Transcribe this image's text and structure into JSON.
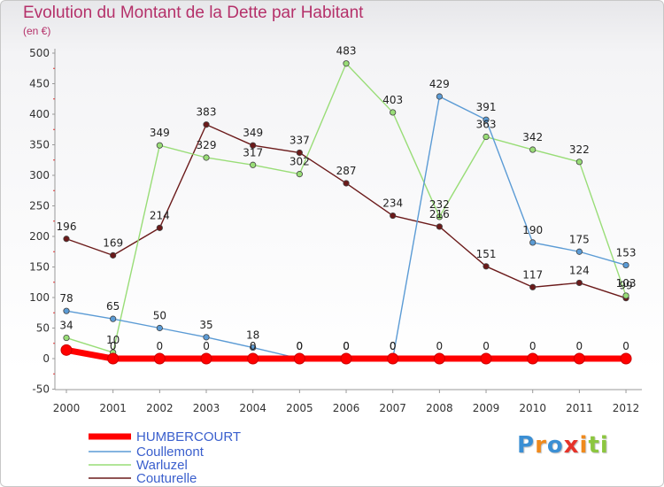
{
  "title": "Evolution du Montant de la Dette par Habitant",
  "unit_label": "(en €)",
  "logo": {
    "letters": [
      "P",
      "r",
      "o",
      "x",
      "i",
      "t",
      "i"
    ],
    "colors": [
      "#3b8fd4",
      "#f08a1c",
      "#3b8fd4",
      "#e6332a",
      "#f08a1c",
      "#8cc63f",
      "#8cc63f"
    ]
  },
  "chart_data": {
    "type": "line",
    "title": "Evolution du Montant de la Dette par Habitant",
    "ylabel": "(en €)",
    "xlabel": "",
    "x": [
      "2000",
      "2001",
      "2002",
      "2003",
      "2004",
      "2005",
      "2006",
      "2007",
      "2008",
      "2009",
      "2010",
      "2011",
      "2012"
    ],
    "ylim": [
      -50,
      500
    ],
    "yticks": [
      "-50",
      "0",
      "50",
      "100",
      "150",
      "200",
      "250",
      "300",
      "350",
      "400",
      "450",
      "500"
    ],
    "grid": false,
    "legend_position": "bottom-left",
    "series": [
      {
        "name": "HUMBERCOURT",
        "color": "#ff0000",
        "values": [
          14,
          0,
          0,
          0,
          0,
          0,
          0,
          0,
          0,
          0,
          0,
          0,
          0
        ],
        "labels": [
          "",
          "0",
          "0",
          "0",
          "0",
          "0",
          "0",
          "0",
          "0",
          "0",
          "0",
          "0",
          "0"
        ]
      },
      {
        "name": "Coullemont",
        "color": "#5b9bd5",
        "values": [
          78,
          65,
          50,
          35,
          18,
          0,
          0,
          0,
          429,
          391,
          190,
          175,
          153
        ],
        "labels": [
          "78",
          "65",
          "50",
          "35",
          "18",
          "0",
          "0",
          "0",
          "429",
          "391",
          "190",
          "175",
          "153"
        ]
      },
      {
        "name": "Warluzel",
        "color": "#99dd77",
        "values": [
          34,
          10,
          349,
          329,
          317,
          302,
          483,
          403,
          232,
          363,
          342,
          322,
          103
        ],
        "labels": [
          "34",
          "10",
          "349",
          "329",
          "317",
          "302",
          "483",
          "403",
          "232",
          "363",
          "342",
          "322",
          "103"
        ]
      },
      {
        "name": "Couturelle",
        "color": "#6b1a1a",
        "values": [
          196,
          169,
          214,
          383,
          349,
          337,
          287,
          234,
          216,
          151,
          117,
          124,
          99
        ],
        "labels": [
          "196",
          "169",
          "214",
          "383",
          "349",
          "337",
          "287",
          "234",
          "216",
          "151",
          "117",
          "124",
          "99"
        ]
      }
    ]
  }
}
